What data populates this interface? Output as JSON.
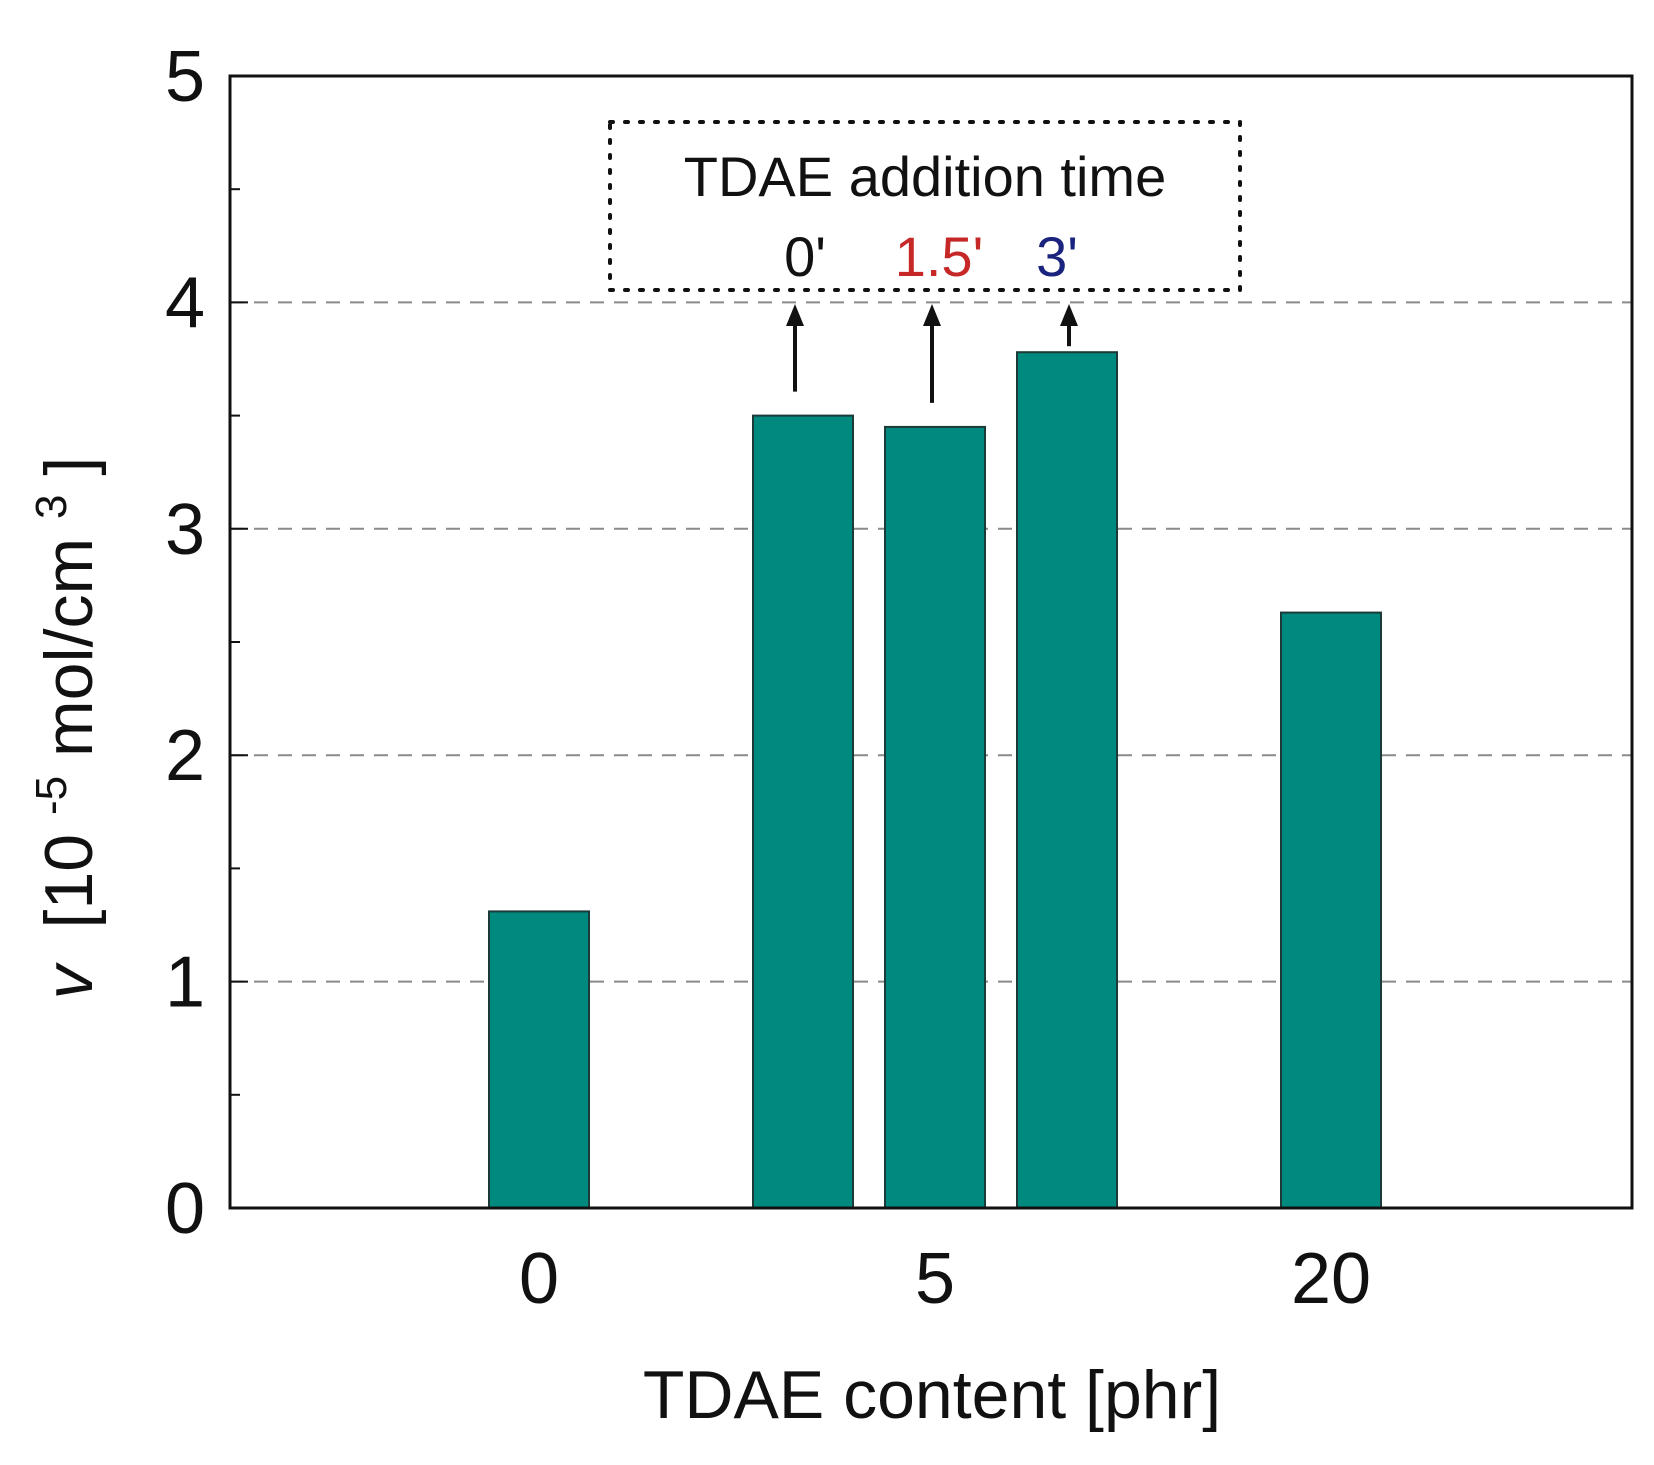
{
  "chart_data": {
    "type": "bar",
    "title": "",
    "xlabel": "TDAE content [phr]",
    "ylabel": {
      "symbol": "v",
      "text": "[10",
      "exp1": "-5",
      "unit": " mol/cm",
      "exp2": "3",
      "close": "]"
    },
    "ylim": [
      0,
      5
    ],
    "yticks": [
      "0",
      "1",
      "2",
      "3",
      "4",
      "5"
    ],
    "grid": "horizontal dashed at 1, 2, 3, 4",
    "categories": [
      "0",
      "5",
      "20"
    ],
    "bars": [
      {
        "category": "0",
        "addition_time": "",
        "value": 1.31
      },
      {
        "category": "5",
        "addition_time": "0'",
        "value": 3.5
      },
      {
        "category": "5",
        "addition_time": "1.5'",
        "value": 3.45
      },
      {
        "category": "5",
        "addition_time": "3'",
        "value": 3.78
      },
      {
        "category": "20",
        "addition_time": "",
        "value": 2.63
      }
    ],
    "bar_color": "#00897F",
    "annotation": {
      "title": "TDAE addition time",
      "labels": [
        {
          "text": "0'",
          "color": "#111111"
        },
        {
          "text": "1.5'",
          "color": "#C62828"
        },
        {
          "text": "3'",
          "color": "#1A237E"
        }
      ]
    }
  }
}
